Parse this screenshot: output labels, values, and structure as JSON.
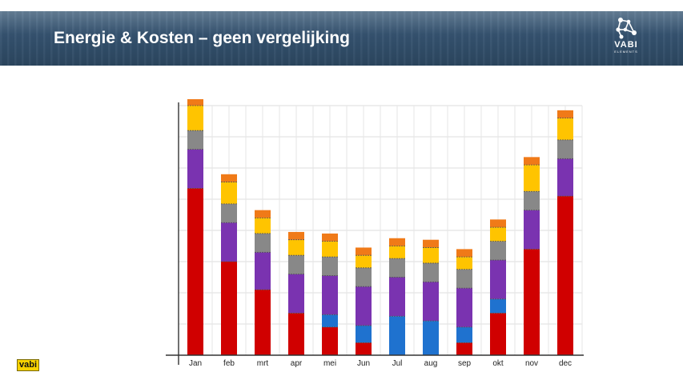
{
  "header": {
    "title": "Energie & Kosten – geen vergelijking",
    "logo_name": "VABI",
    "logo_sub": "ELEMENTS"
  },
  "footer": {
    "small_logo": "vabi"
  },
  "colors": {
    "banner": "#35526f",
    "red": "#d00000",
    "blue": "#1f72cf",
    "purple": "#7a33b0",
    "gray": "#888888",
    "yellow": "#ffc400",
    "orange": "#f07a18"
  },
  "chart_data": {
    "type": "bar",
    "stacked": true,
    "grid": true,
    "categories": [
      "Jan",
      "feb",
      "mrt",
      "apr",
      "mei",
      "Jun",
      "Jul",
      "aug",
      "sep",
      "okt",
      "nov",
      "dec"
    ],
    "ylim": [
      0,
      80
    ],
    "series": [
      {
        "color": "#d00000",
        "values": [
          53.5,
          30,
          21,
          13.5,
          9,
          4,
          0,
          0,
          4,
          13.5,
          34,
          51
        ]
      },
      {
        "color": "#1f72cf",
        "values": [
          0,
          0,
          0,
          0,
          4,
          5.5,
          12.5,
          11,
          5,
          4.5,
          0,
          0
        ]
      },
      {
        "color": "#7a33b0",
        "values": [
          12.5,
          12.5,
          12,
          12.5,
          12.5,
          12.5,
          12.5,
          12.5,
          12.5,
          12.5,
          12.5,
          12
        ]
      },
      {
        "color": "#888888",
        "values": [
          6,
          6,
          6,
          6,
          6,
          6,
          6,
          6,
          6,
          6,
          6,
          6
        ]
      },
      {
        "color": "#ffc400",
        "values": [
          8,
          7,
          5,
          5,
          5,
          4,
          4,
          5,
          4,
          4.5,
          8.5,
          7
        ]
      },
      {
        "color": "#f07a18",
        "values": [
          2.5,
          2.5,
          2.5,
          2.5,
          2.5,
          2.5,
          2.5,
          2.5,
          2.5,
          2.5,
          2.5,
          2.5
        ]
      }
    ]
  }
}
